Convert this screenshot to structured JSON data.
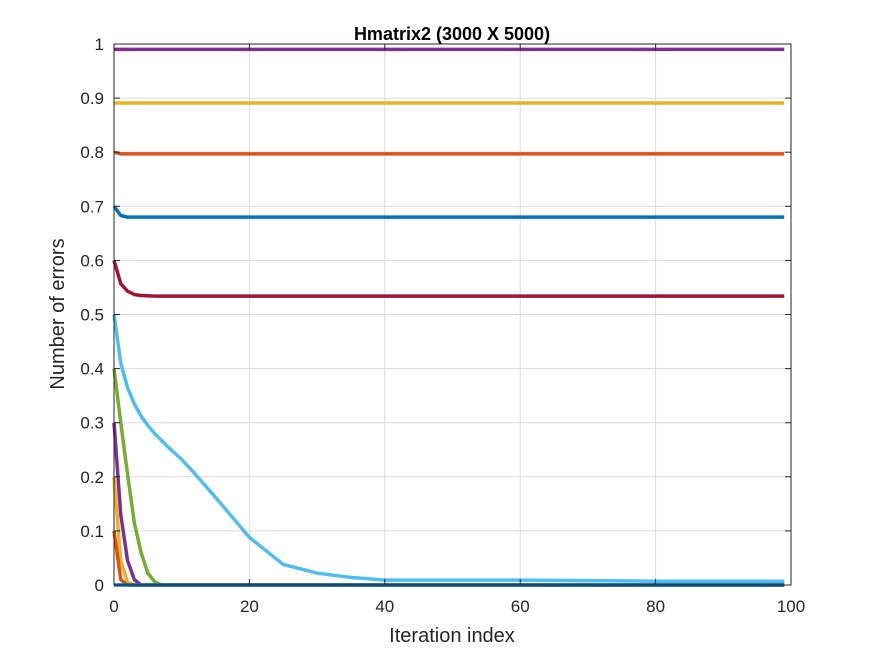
{
  "chart_data": {
    "type": "line",
    "title": "Hmatrix2 (3000 X 5000)",
    "xlabel": "Iteration index",
    "ylabel": "Number of errors",
    "xlim": [
      0,
      100
    ],
    "ylim": [
      0,
      1
    ],
    "xticks": [
      0,
      20,
      40,
      60,
      80,
      100
    ],
    "xtick_labels": [
      "0",
      "20",
      "40",
      "60",
      "80",
      "100"
    ],
    "yticks": [
      0,
      0.1,
      0.2,
      0.3,
      0.4,
      0.5,
      0.6,
      0.7,
      0.8,
      0.9,
      1
    ],
    "ytick_labels": [
      "0",
      "0.1",
      "0.2",
      "0.3",
      "0.4",
      "0.5",
      "0.6",
      "0.7",
      "0.8",
      "0.9",
      "1"
    ],
    "grid": true,
    "series": [
      {
        "color": "#7E2F8E",
        "x": [
          0,
          1,
          99
        ],
        "y": [
          0.99,
          0.99,
          0.99
        ]
      },
      {
        "color": "#EDB120",
        "x": [
          0,
          1,
          99
        ],
        "y": [
          0.891,
          0.891,
          0.891
        ]
      },
      {
        "color": "#D95319",
        "x": [
          0,
          1,
          2,
          99
        ],
        "y": [
          0.8,
          0.797,
          0.797,
          0.797
        ]
      },
      {
        "color": "#0072BD",
        "x": [
          0,
          1,
          2,
          3,
          99
        ],
        "y": [
          0.7,
          0.683,
          0.68,
          0.68,
          0.68
        ]
      },
      {
        "color": "#A2142F",
        "x": [
          0,
          1,
          2,
          3,
          4,
          6,
          99
        ],
        "y": [
          0.6,
          0.557,
          0.543,
          0.537,
          0.535,
          0.534,
          0.534
        ]
      },
      {
        "color": "#4DBEEE",
        "x": [
          0,
          1,
          2,
          3,
          4,
          5,
          6,
          8,
          10,
          12,
          15,
          20,
          25,
          30,
          35,
          40,
          50,
          60,
          70,
          80,
          99
        ],
        "y": [
          0.5,
          0.41,
          0.365,
          0.335,
          0.312,
          0.295,
          0.28,
          0.255,
          0.232,
          0.205,
          0.162,
          0.088,
          0.038,
          0.022,
          0.014,
          0.009,
          0.009,
          0.009,
          0.008,
          0.007,
          0.007
        ]
      },
      {
        "color": "#77AC30",
        "x": [
          0,
          1,
          2,
          3,
          4,
          5,
          6,
          7,
          8,
          99
        ],
        "y": [
          0.4,
          0.3,
          0.205,
          0.115,
          0.06,
          0.022,
          0.006,
          0.0,
          0.0,
          0.0
        ]
      },
      {
        "color": "#7E2F8E",
        "x": [
          0,
          1,
          2,
          3,
          4,
          5,
          99
        ],
        "y": [
          0.3,
          0.13,
          0.045,
          0.01,
          0.0,
          0.0,
          0.0
        ]
      },
      {
        "color": "#EDB120",
        "x": [
          0,
          1,
          2,
          3,
          99
        ],
        "y": [
          0.2,
          0.045,
          0.005,
          0.0,
          0.0
        ]
      },
      {
        "color": "#D95319",
        "x": [
          0,
          1,
          2,
          99
        ],
        "y": [
          0.1,
          0.01,
          0.0,
          0.0
        ]
      },
      {
        "color": "#0072BD",
        "x": [
          0,
          1,
          99
        ],
        "y": [
          0.0,
          0.0,
          0.0
        ]
      }
    ]
  }
}
